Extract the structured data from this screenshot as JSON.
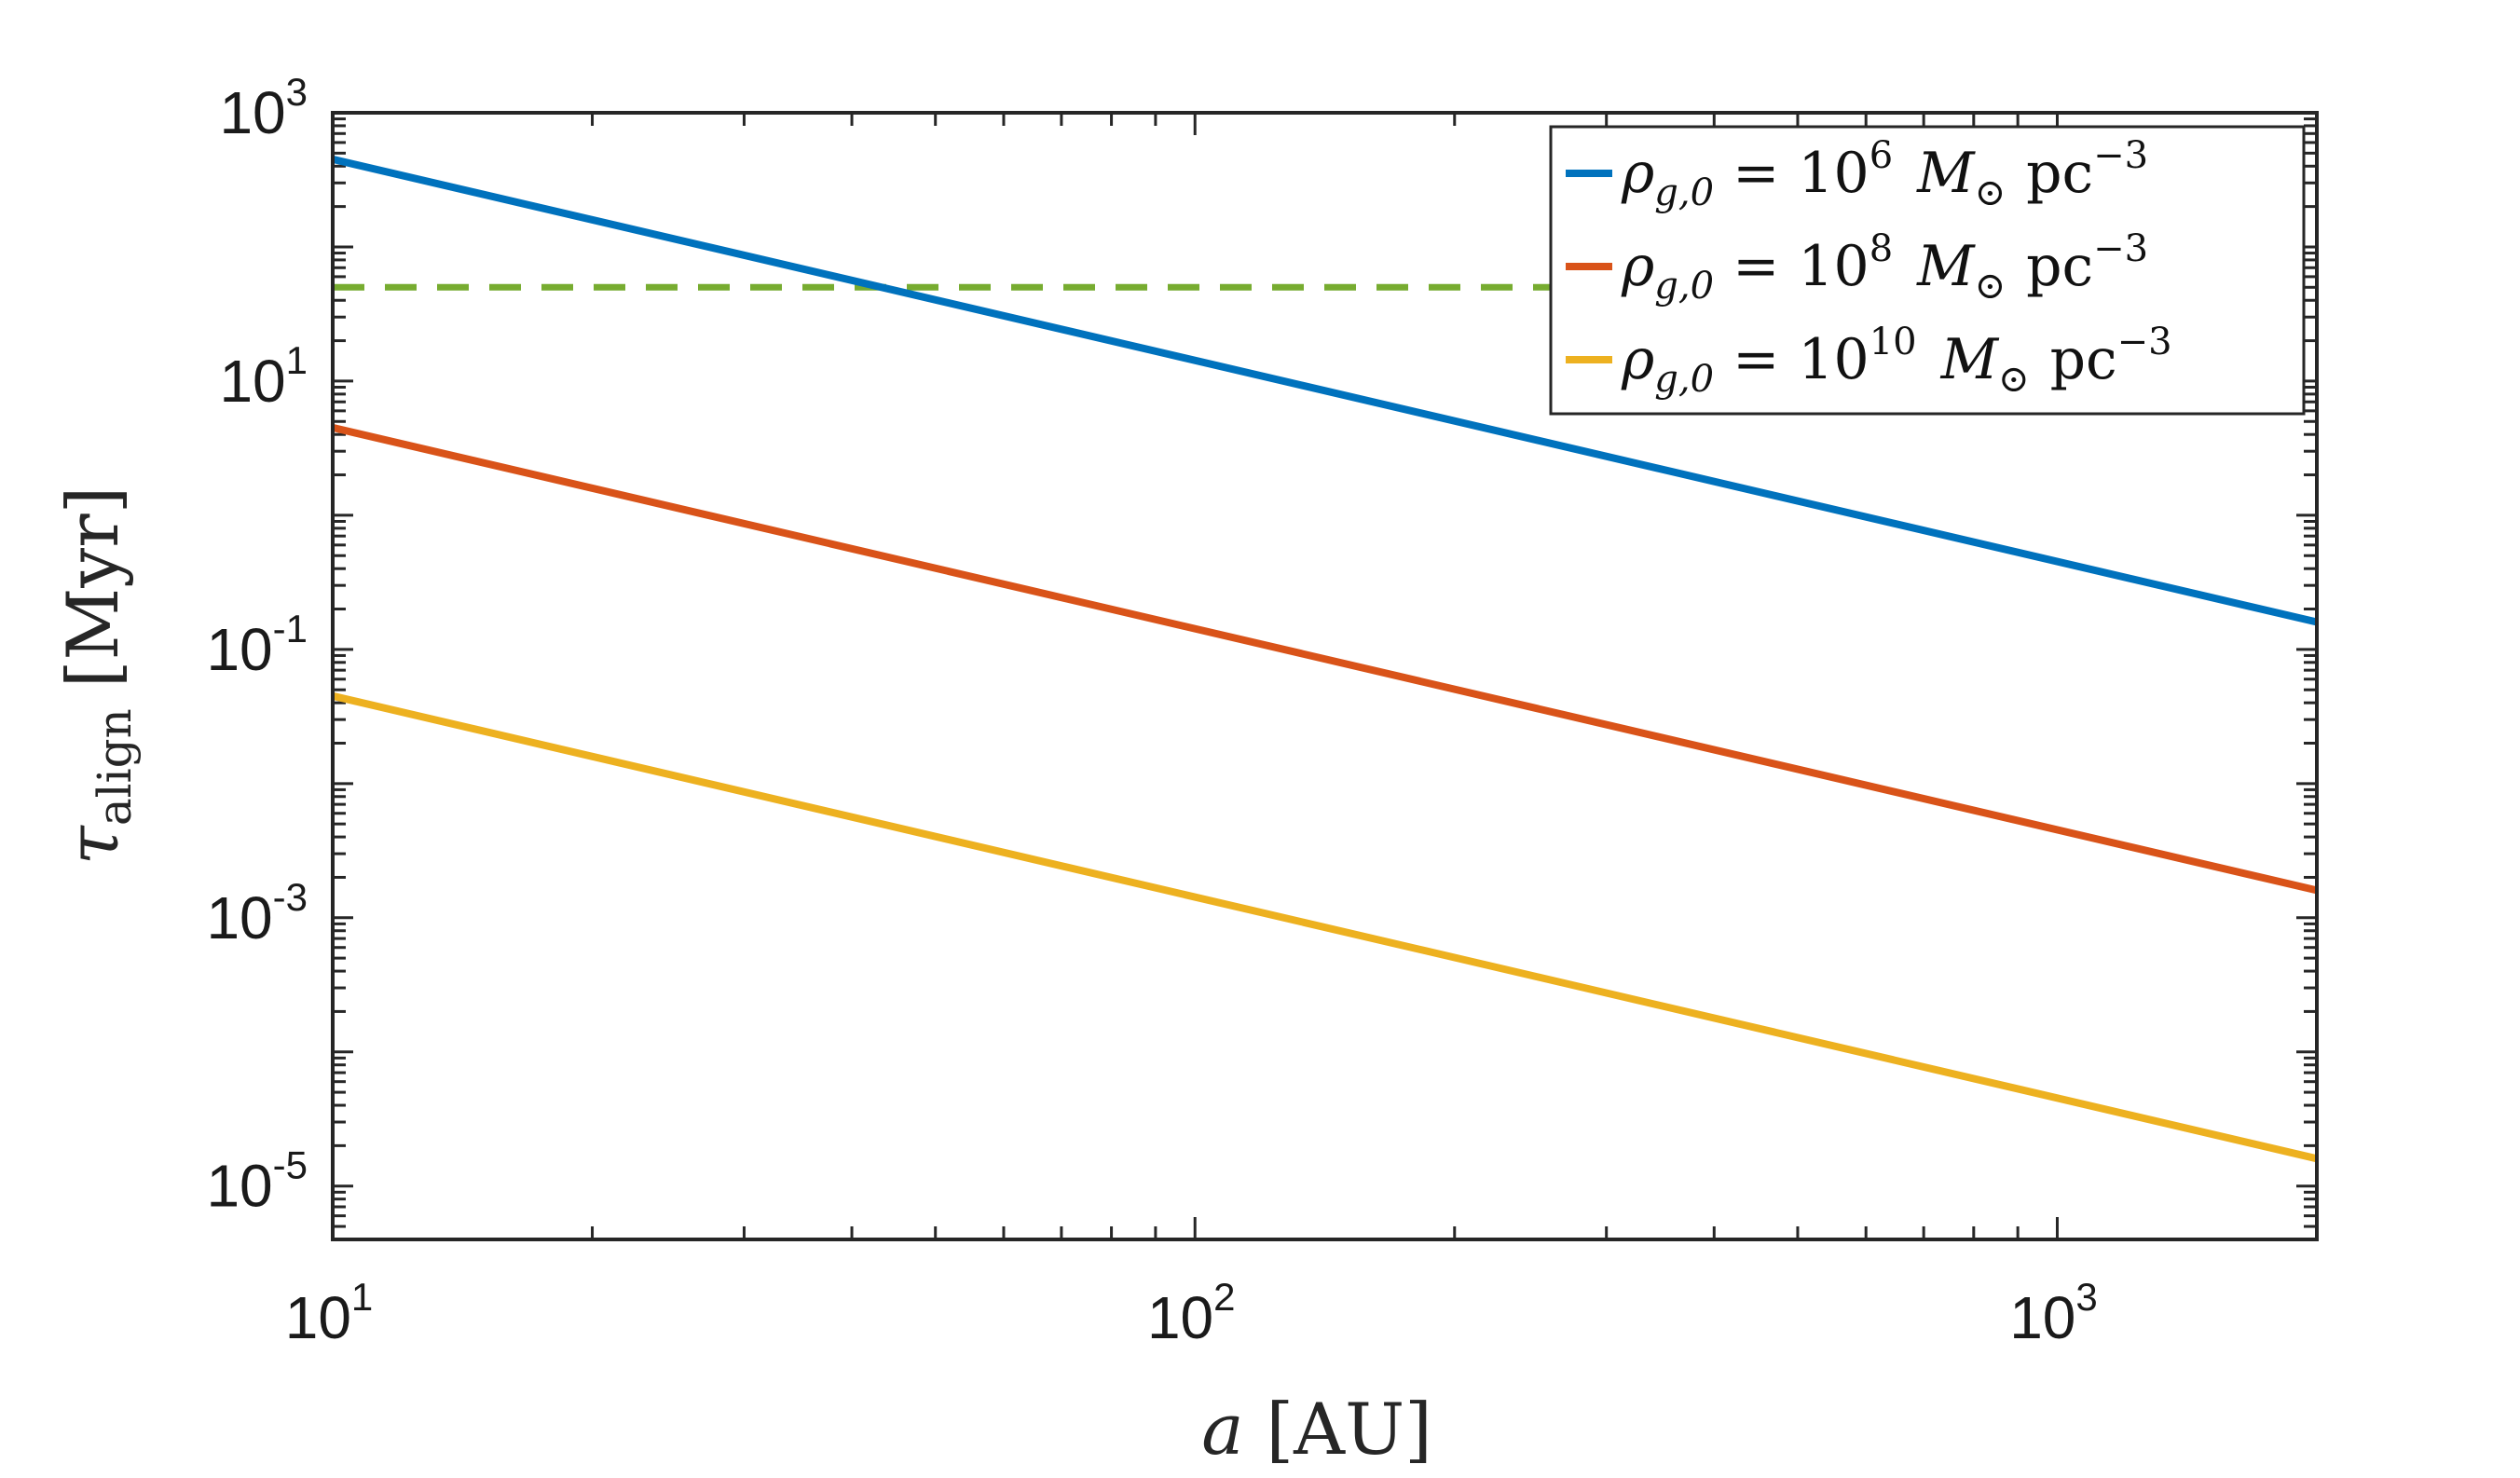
{
  "chart_data": {
    "type": "line",
    "scale": {
      "x": "log",
      "y": "log"
    },
    "xlabel": {
      "var": "a",
      "units": "[AU]"
    },
    "ylabel": {
      "var": "τ",
      "sub": "align",
      "units": "[Myr]"
    },
    "xlim": [
      10,
      2000
    ],
    "ylim": [
      4e-06,
      1000
    ],
    "x_ticks": [
      {
        "base": "10",
        "exp": "1",
        "value": 10
      },
      {
        "base": "10",
        "exp": "2",
        "value": 100
      },
      {
        "base": "10",
        "exp": "3",
        "value": 1000
      }
    ],
    "y_ticks": [
      {
        "base": "10",
        "exp": "3",
        "value": 1000
      },
      {
        "base": "10",
        "exp": "1",
        "value": 10
      },
      {
        "base": "10",
        "exp": "-1",
        "value": 0.1
      },
      {
        "base": "10",
        "exp": "-3",
        "value": 0.001
      },
      {
        "base": "10",
        "exp": "-5",
        "value": 1e-05
      }
    ],
    "series": [
      {
        "name": "ρ_{g,0} = 10^6 M_⊙ pc^-3",
        "rho_exp": "6",
        "color": "#0072bd",
        "x": [
          10,
          2000
        ],
        "y": [
          450,
          0.16
        ]
      },
      {
        "name": "ρ_{g,0} = 10^8 M_⊙ pc^-3",
        "rho_exp": "8",
        "color": "#d95319",
        "x": [
          10,
          2000
        ],
        "y": [
          4.5,
          0.0016
        ]
      },
      {
        "name": "ρ_{g,0} = 10^10 M_⊙ pc^-3",
        "rho_exp": "10",
        "color": "#edb120",
        "x": [
          10,
          2000
        ],
        "y": [
          0.045,
          1.6e-05
        ]
      }
    ],
    "reference_line": {
      "style": "dashed",
      "color": "#77ac30",
      "y": 50
    },
    "legend": {
      "location": "top-right",
      "rho_symbol": "ρ",
      "rho_sub": "g,0",
      "equals": "=",
      "base": "10",
      "mass_symbol": "M",
      "mass_sub": "⊙",
      "unit": "pc",
      "unit_exp": "−3"
    }
  }
}
